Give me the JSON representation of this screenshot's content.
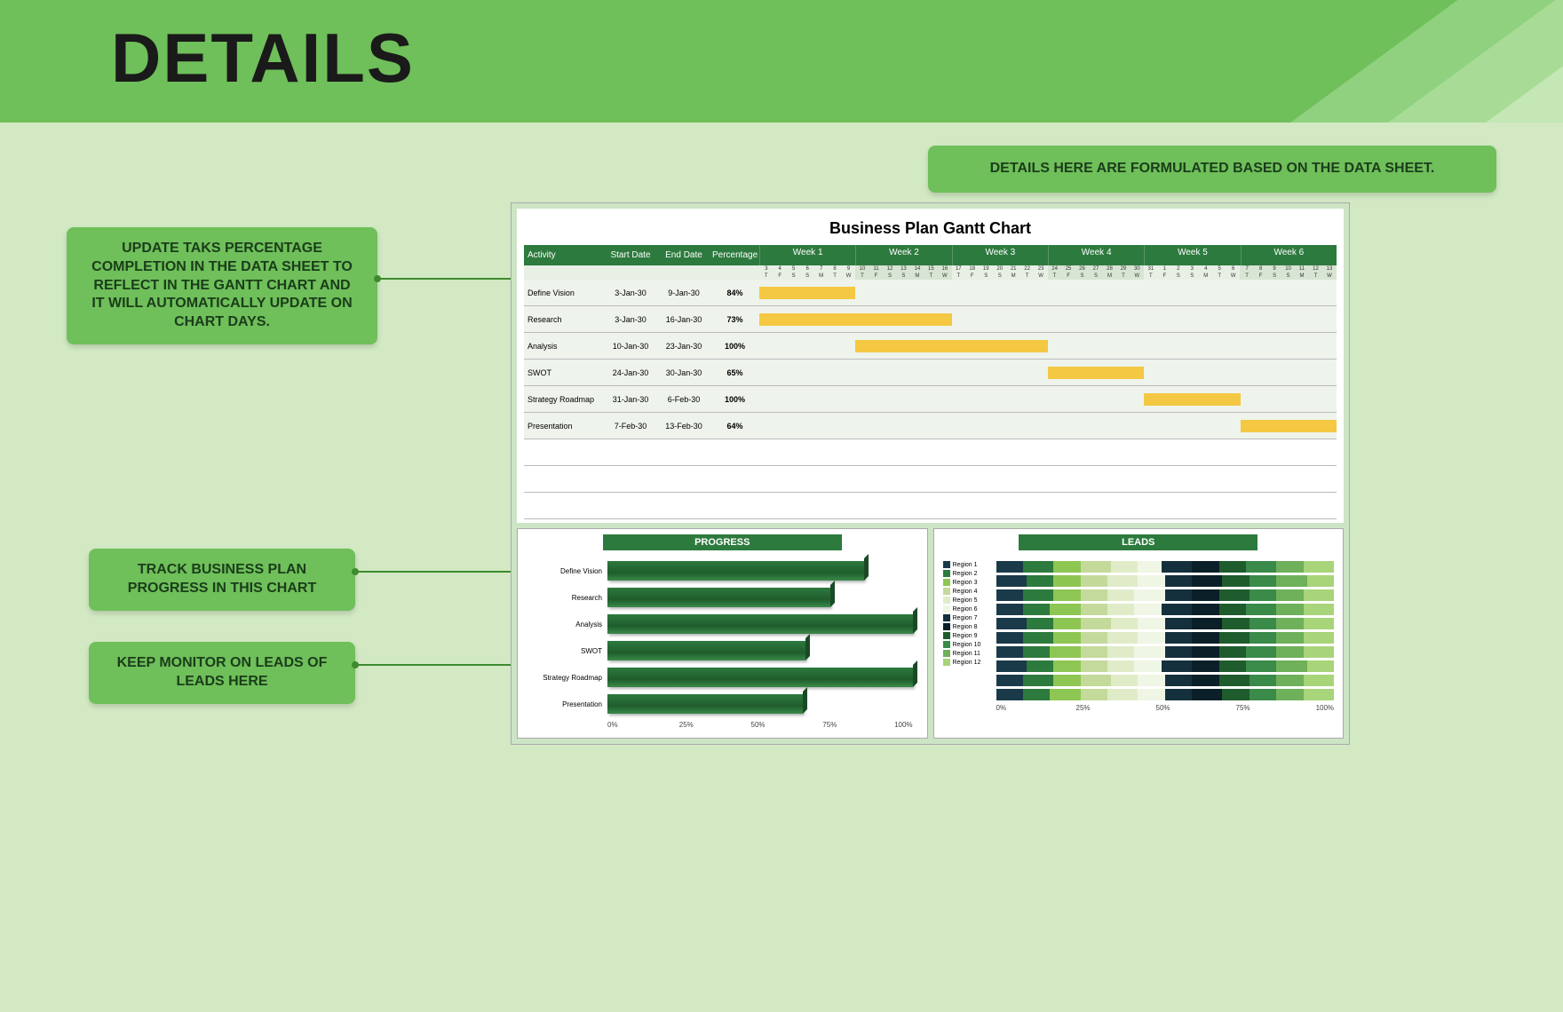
{
  "page_title": "DETAILS",
  "colors": {
    "banner_bg": "#6fbf5a",
    "content_bg": "#d2e9c3",
    "callout_bg": "#6fbf5a",
    "header_dark": "#2d7a3e",
    "gantt_bar": "#f4c842",
    "progress_bar": "#2d7a3e"
  },
  "callouts": {
    "top": "DETAILS HERE ARE FORMULATED BASED ON THE DATA SHEET.",
    "c1": "UPDATE TAKS PERCENTAGE COMPLETION IN THE DATA SHEET TO REFLECT IN THE GANTT CHART AND IT WILL AUTOMATICALLY UPDATE ON CHART DAYS.",
    "c2": "TRACK BUSINESS PLAN PROGRESS IN THIS CHART",
    "c3": "KEEP MONITOR ON LEADS OF LEADS HERE"
  },
  "gantt": {
    "title": "Business Plan Gantt Chart",
    "columns": {
      "activity": "Activity",
      "start": "Start Date",
      "end": "End Date",
      "pct": "Percentage"
    },
    "weeks": [
      "Week 1",
      "Week 2",
      "Week 3",
      "Week 4",
      "Week 5",
      "Week 6"
    ],
    "day_nums": [
      "3",
      "4",
      "5",
      "6",
      "7",
      "8",
      "9",
      "10",
      "11",
      "12",
      "13",
      "14",
      "15",
      "16",
      "17",
      "18",
      "19",
      "20",
      "21",
      "22",
      "23",
      "24",
      "25",
      "26",
      "27",
      "28",
      "29",
      "30",
      "31",
      "1",
      "2",
      "3",
      "4",
      "5",
      "6",
      "7",
      "8",
      "9",
      "10",
      "11",
      "12",
      "13"
    ],
    "day_letters": [
      "T",
      "F",
      "S",
      "S",
      "M",
      "T",
      "W",
      "T",
      "F",
      "S",
      "S",
      "M",
      "T",
      "W",
      "T",
      "F",
      "S",
      "S",
      "M",
      "T",
      "W",
      "T",
      "F",
      "S",
      "S",
      "M",
      "T",
      "W",
      "T",
      "F",
      "S",
      "S",
      "M",
      "T",
      "W",
      "T",
      "F",
      "S",
      "S",
      "M",
      "T",
      "W"
    ],
    "total_days": 42,
    "rows": [
      {
        "activity": "Define Vision",
        "start": "3-Jan-30",
        "end": "9-Jan-30",
        "pct": "84%",
        "bar_start": 0,
        "bar_len": 7
      },
      {
        "activity": "Research",
        "start": "3-Jan-30",
        "end": "16-Jan-30",
        "pct": "73%",
        "bar_start": 0,
        "bar_len": 14
      },
      {
        "activity": "Analysis",
        "start": "10-Jan-30",
        "end": "23-Jan-30",
        "pct": "100%",
        "bar_start": 7,
        "bar_len": 14
      },
      {
        "activity": "SWOT",
        "start": "24-Jan-30",
        "end": "30-Jan-30",
        "pct": "65%",
        "bar_start": 21,
        "bar_len": 7
      },
      {
        "activity": "Strategy Roadmap",
        "start": "31-Jan-30",
        "end": "6-Feb-30",
        "pct": "100%",
        "bar_start": 28,
        "bar_len": 7
      },
      {
        "activity": "Presentation",
        "start": "7-Feb-30",
        "end": "13-Feb-30",
        "pct": "64%",
        "bar_start": 35,
        "bar_len": 7
      }
    ],
    "empty_rows": 3
  },
  "progress_chart": {
    "title": "PROGRESS",
    "axis": [
      "0%",
      "25%",
      "50%",
      "75%",
      "100%"
    ],
    "items": [
      {
        "label": "Define Vision",
        "value": 84
      },
      {
        "label": "Research",
        "value": 73
      },
      {
        "label": "Analysis",
        "value": 100
      },
      {
        "label": "SWOT",
        "value": 65
      },
      {
        "label": "Strategy Roadmap",
        "value": 100
      },
      {
        "label": "Presentation",
        "value": 64
      }
    ]
  },
  "leads_chart": {
    "title": "LEADS",
    "axis": [
      "0%",
      "25%",
      "50%",
      "75%",
      "100%"
    ],
    "regions": [
      {
        "label": "Region 1",
        "color": "#1a3a4a"
      },
      {
        "label": "Region 2",
        "color": "#2d7a3e"
      },
      {
        "label": "Region 3",
        "color": "#8ec653"
      },
      {
        "label": "Region 4",
        "color": "#c4da9a"
      },
      {
        "label": "Region 5",
        "color": "#e0ecc8"
      },
      {
        "label": "Region 6",
        "color": "#f0f6e5"
      },
      {
        "label": "Region 7",
        "color": "#14303d"
      },
      {
        "label": "Region 8",
        "color": "#0a1f28"
      },
      {
        "label": "Region 9",
        "color": "#1f5c2d"
      },
      {
        "label": "Region 10",
        "color": "#3a8a4a"
      },
      {
        "label": "Region 11",
        "color": "#6fb05a"
      },
      {
        "label": "Region 12",
        "color": "#a8d47a"
      }
    ],
    "rows": [
      [
        8,
        9,
        8,
        9,
        8,
        7,
        9,
        8,
        8,
        9,
        8,
        9
      ],
      [
        9,
        8,
        8,
        8,
        9,
        8,
        8,
        9,
        8,
        8,
        9,
        8
      ],
      [
        8,
        9,
        8,
        8,
        8,
        9,
        8,
        8,
        9,
        8,
        8,
        9
      ],
      [
        8,
        8,
        9,
        8,
        8,
        8,
        9,
        8,
        8,
        9,
        8,
        9
      ],
      [
        9,
        8,
        8,
        9,
        8,
        8,
        8,
        9,
        8,
        8,
        8,
        9
      ],
      [
        8,
        9,
        8,
        8,
        9,
        8,
        8,
        8,
        9,
        8,
        8,
        9
      ],
      [
        8,
        8,
        9,
        8,
        8,
        9,
        8,
        8,
        8,
        9,
        8,
        9
      ],
      [
        9,
        8,
        8,
        8,
        8,
        8,
        9,
        8,
        8,
        9,
        9,
        8
      ],
      [
        8,
        9,
        8,
        9,
        8,
        8,
        8,
        8,
        9,
        8,
        8,
        9
      ],
      [
        8,
        8,
        9,
        8,
        9,
        8,
        8,
        9,
        8,
        8,
        8,
        9
      ]
    ]
  }
}
